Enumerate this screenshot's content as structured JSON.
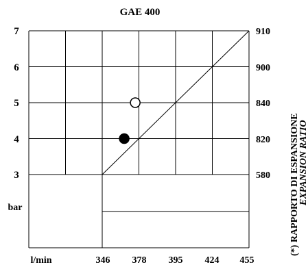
{
  "chart_data": {
    "type": "line",
    "title": "GAE 400",
    "y_left": {
      "ticks": [
        "7",
        "6",
        "5",
        "4",
        "3"
      ],
      "unit": "bar"
    },
    "y_right": {
      "ticks": [
        "910",
        "900",
        "840",
        "820",
        "580"
      ],
      "label_line1": "(*) RAPPORTO DI ESPANSIONE",
      "label_line2": "EXPANSION RATIO"
    },
    "x": {
      "unit": "l/min",
      "ticks": [
        "346",
        "378",
        "395",
        "424",
        "455"
      ]
    },
    "ylim": [
      2,
      7
    ],
    "xlim": [
      1,
      7
    ],
    "line": {
      "points": [
        [
          3,
          3
        ],
        [
          7,
          7
        ]
      ]
    },
    "markers": [
      {
        "x": 3.6,
        "y": 4,
        "fill": "#000000",
        "style": "filled"
      },
      {
        "x": 3.9,
        "y": 5,
        "fill": "#ffffff",
        "style": "open"
      }
    ]
  }
}
